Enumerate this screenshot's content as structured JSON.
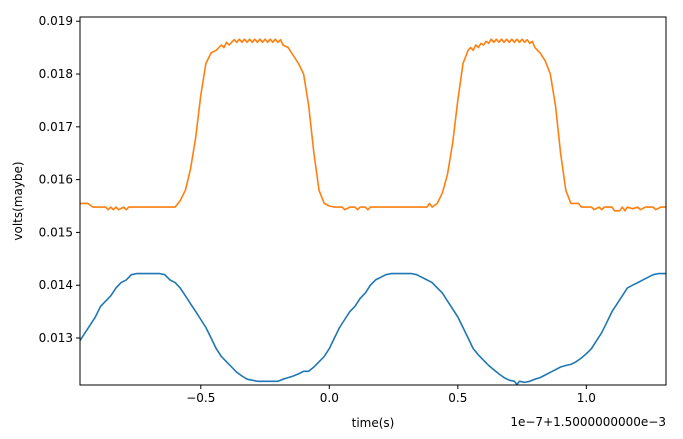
{
  "chart_data": {
    "type": "line",
    "xlabel": "time(s)",
    "ylabel": "volts(maybe)",
    "offset_label": "1e−7+1.5000000000e−3",
    "xlim": [
      -0.97,
      1.31
    ],
    "ylim": [
      0.01211,
      0.01908
    ],
    "xticks": [
      -0.5,
      0.0,
      0.5,
      1.0
    ],
    "xtick_labels": [
      "−0.5",
      "0.0",
      "0.5",
      "1.0"
    ],
    "yticks": [
      0.013,
      0.014,
      0.015,
      0.016,
      0.017,
      0.018,
      0.019
    ],
    "ytick_labels": [
      "0.013",
      "0.014",
      "0.015",
      "0.016",
      "0.017",
      "0.018",
      "0.019"
    ],
    "grid": false,
    "series": [
      {
        "color": "#ff7f0e",
        "points": [
          [
            -0.97,
            0.01555
          ],
          [
            -0.94,
            0.01555
          ],
          [
            -0.92,
            0.01548
          ],
          [
            -0.87,
            0.01548
          ],
          [
            -0.86,
            0.01543
          ],
          [
            -0.85,
            0.01548
          ],
          [
            -0.84,
            0.01543
          ],
          [
            -0.83,
            0.01548
          ],
          [
            -0.82,
            0.01543
          ],
          [
            -0.8,
            0.01548
          ],
          [
            -0.79,
            0.01543
          ],
          [
            -0.78,
            0.01548
          ],
          [
            -0.6,
            0.01548
          ],
          [
            -0.58,
            0.0156
          ],
          [
            -0.56,
            0.0158
          ],
          [
            -0.54,
            0.0162
          ],
          [
            -0.52,
            0.0168
          ],
          [
            -0.5,
            0.0176
          ],
          [
            -0.48,
            0.0182
          ],
          [
            -0.46,
            0.0184
          ],
          [
            -0.44,
            0.01845
          ],
          [
            -0.42,
            0.01855
          ],
          [
            -0.41,
            0.0185
          ],
          [
            -0.4,
            0.0186
          ],
          [
            -0.39,
            0.01855
          ],
          [
            -0.37,
            0.01865
          ],
          [
            -0.36,
            0.0186
          ],
          [
            -0.35,
            0.01866
          ],
          [
            -0.34,
            0.0186
          ],
          [
            -0.33,
            0.01866
          ],
          [
            -0.32,
            0.0186
          ],
          [
            -0.31,
            0.01866
          ],
          [
            -0.3,
            0.0186
          ],
          [
            -0.29,
            0.01866
          ],
          [
            -0.28,
            0.0186
          ],
          [
            -0.27,
            0.01866
          ],
          [
            -0.26,
            0.0186
          ],
          [
            -0.25,
            0.01866
          ],
          [
            -0.24,
            0.0186
          ],
          [
            -0.23,
            0.01866
          ],
          [
            -0.22,
            0.0186
          ],
          [
            -0.21,
            0.01866
          ],
          [
            -0.2,
            0.0186
          ],
          [
            -0.19,
            0.01865
          ],
          [
            -0.18,
            0.01855
          ],
          [
            -0.16,
            0.0185
          ],
          [
            -0.14,
            0.01835
          ],
          [
            -0.12,
            0.0182
          ],
          [
            -0.1,
            0.018
          ],
          [
            -0.08,
            0.0174
          ],
          [
            -0.06,
            0.0165
          ],
          [
            -0.04,
            0.0158
          ],
          [
            -0.02,
            0.01555
          ],
          [
            0.0,
            0.0155
          ],
          [
            0.02,
            0.01548
          ],
          [
            0.05,
            0.01548
          ],
          [
            0.06,
            0.01543
          ],
          [
            0.08,
            0.01548
          ],
          [
            0.1,
            0.01548
          ],
          [
            0.11,
            0.01543
          ],
          [
            0.12,
            0.01548
          ],
          [
            0.14,
            0.01548
          ],
          [
            0.15,
            0.01543
          ],
          [
            0.16,
            0.01548
          ],
          [
            0.38,
            0.01548
          ],
          [
            0.39,
            0.01555
          ],
          [
            0.4,
            0.01548
          ],
          [
            0.42,
            0.01555
          ],
          [
            0.44,
            0.01575
          ],
          [
            0.46,
            0.0161
          ],
          [
            0.48,
            0.0167
          ],
          [
            0.5,
            0.0175
          ],
          [
            0.52,
            0.0182
          ],
          [
            0.54,
            0.01845
          ],
          [
            0.55,
            0.0185
          ],
          [
            0.56,
            0.01845
          ],
          [
            0.57,
            0.01855
          ],
          [
            0.58,
            0.0185
          ],
          [
            0.59,
            0.01858
          ],
          [
            0.6,
            0.01855
          ],
          [
            0.61,
            0.01862
          ],
          [
            0.62,
            0.01858
          ],
          [
            0.63,
            0.01866
          ],
          [
            0.64,
            0.0186
          ],
          [
            0.65,
            0.01866
          ],
          [
            0.66,
            0.0186
          ],
          [
            0.67,
            0.01866
          ],
          [
            0.68,
            0.0186
          ],
          [
            0.69,
            0.01866
          ],
          [
            0.7,
            0.0186
          ],
          [
            0.71,
            0.01866
          ],
          [
            0.72,
            0.0186
          ],
          [
            0.73,
            0.01866
          ],
          [
            0.74,
            0.0186
          ],
          [
            0.75,
            0.01866
          ],
          [
            0.76,
            0.0186
          ],
          [
            0.77,
            0.01865
          ],
          [
            0.78,
            0.01858
          ],
          [
            0.79,
            0.01862
          ],
          [
            0.8,
            0.0185
          ],
          [
            0.82,
            0.0184
          ],
          [
            0.84,
            0.01825
          ],
          [
            0.86,
            0.018
          ],
          [
            0.88,
            0.0174
          ],
          [
            0.9,
            0.0165
          ],
          [
            0.92,
            0.0158
          ],
          [
            0.94,
            0.01555
          ],
          [
            0.97,
            0.01555
          ],
          [
            0.98,
            0.01548
          ],
          [
            1.02,
            0.01548
          ],
          [
            1.03,
            0.01543
          ],
          [
            1.05,
            0.01548
          ],
          [
            1.06,
            0.01543
          ],
          [
            1.07,
            0.01548
          ],
          [
            1.1,
            0.01548
          ],
          [
            1.11,
            0.01541
          ],
          [
            1.13,
            0.01541
          ],
          [
            1.14,
            0.01548
          ],
          [
            1.15,
            0.01541
          ],
          [
            1.16,
            0.01548
          ],
          [
            1.18,
            0.01545
          ],
          [
            1.2,
            0.01548
          ],
          [
            1.21,
            0.01543
          ],
          [
            1.23,
            0.01548
          ],
          [
            1.26,
            0.01548
          ],
          [
            1.27,
            0.01543
          ],
          [
            1.29,
            0.01548
          ],
          [
            1.31,
            0.01548
          ]
        ]
      },
      {
        "color": "#1f77b4",
        "points": [
          [
            -0.97,
            0.01295
          ],
          [
            -0.95,
            0.0131
          ],
          [
            -0.93,
            0.01325
          ],
          [
            -0.91,
            0.0134
          ],
          [
            -0.89,
            0.0136
          ],
          [
            -0.87,
            0.0137
          ],
          [
            -0.85,
            0.0138
          ],
          [
            -0.83,
            0.01395
          ],
          [
            -0.81,
            0.01405
          ],
          [
            -0.79,
            0.0141
          ],
          [
            -0.77,
            0.0142
          ],
          [
            -0.75,
            0.01422
          ],
          [
            -0.71,
            0.01422
          ],
          [
            -0.66,
            0.01422
          ],
          [
            -0.64,
            0.0142
          ],
          [
            -0.62,
            0.0141
          ],
          [
            -0.6,
            0.01405
          ],
          [
            -0.58,
            0.01395
          ],
          [
            -0.56,
            0.0138
          ],
          [
            -0.54,
            0.01365
          ],
          [
            -0.52,
            0.0135
          ],
          [
            -0.5,
            0.01335
          ],
          [
            -0.48,
            0.0132
          ],
          [
            -0.46,
            0.013
          ],
          [
            -0.44,
            0.0128
          ],
          [
            -0.42,
            0.01265
          ],
          [
            -0.4,
            0.01255
          ],
          [
            -0.38,
            0.01245
          ],
          [
            -0.36,
            0.01235
          ],
          [
            -0.34,
            0.01228
          ],
          [
            -0.32,
            0.01222
          ],
          [
            -0.3,
            0.0122
          ],
          [
            -0.28,
            0.01218
          ],
          [
            -0.2,
            0.01218
          ],
          [
            -0.18,
            0.01222
          ],
          [
            -0.16,
            0.01225
          ],
          [
            -0.14,
            0.01228
          ],
          [
            -0.12,
            0.01232
          ],
          [
            -0.1,
            0.01237
          ],
          [
            -0.08,
            0.01237
          ],
          [
            -0.06,
            0.01245
          ],
          [
            -0.04,
            0.01255
          ],
          [
            -0.02,
            0.01265
          ],
          [
            0.0,
            0.0128
          ],
          [
            0.02,
            0.013
          ],
          [
            0.04,
            0.0132
          ],
          [
            0.06,
            0.01335
          ],
          [
            0.08,
            0.0135
          ],
          [
            0.1,
            0.0136
          ],
          [
            0.12,
            0.01375
          ],
          [
            0.14,
            0.01385
          ],
          [
            0.16,
            0.014
          ],
          [
            0.18,
            0.0141
          ],
          [
            0.2,
            0.01415
          ],
          [
            0.22,
            0.0142
          ],
          [
            0.24,
            0.01422
          ],
          [
            0.32,
            0.01422
          ],
          [
            0.34,
            0.0142
          ],
          [
            0.36,
            0.01415
          ],
          [
            0.38,
            0.0141
          ],
          [
            0.4,
            0.01405
          ],
          [
            0.42,
            0.01395
          ],
          [
            0.44,
            0.01385
          ],
          [
            0.46,
            0.0137
          ],
          [
            0.48,
            0.01355
          ],
          [
            0.5,
            0.0134
          ],
          [
            0.52,
            0.0132
          ],
          [
            0.54,
            0.013
          ],
          [
            0.56,
            0.0128
          ],
          [
            0.58,
            0.01268
          ],
          [
            0.6,
            0.01258
          ],
          [
            0.62,
            0.01248
          ],
          [
            0.64,
            0.0124
          ],
          [
            0.66,
            0.01232
          ],
          [
            0.68,
            0.01225
          ],
          [
            0.7,
            0.0122
          ],
          [
            0.72,
            0.01218
          ],
          [
            0.73,
            0.01212
          ],
          [
            0.74,
            0.01218
          ],
          [
            0.76,
            0.01216
          ],
          [
            0.78,
            0.01218
          ],
          [
            0.8,
            0.01222
          ],
          [
            0.82,
            0.01225
          ],
          [
            0.84,
            0.0123
          ],
          [
            0.86,
            0.01235
          ],
          [
            0.88,
            0.0124
          ],
          [
            0.9,
            0.01245
          ],
          [
            0.92,
            0.01248
          ],
          [
            0.94,
            0.0125
          ],
          [
            0.96,
            0.01255
          ],
          [
            0.98,
            0.01262
          ],
          [
            1.0,
            0.0127
          ],
          [
            1.02,
            0.0128
          ],
          [
            1.04,
            0.01295
          ],
          [
            1.06,
            0.0131
          ],
          [
            1.08,
            0.0133
          ],
          [
            1.1,
            0.0135
          ],
          [
            1.12,
            0.01365
          ],
          [
            1.14,
            0.0138
          ],
          [
            1.16,
            0.01395
          ],
          [
            1.18,
            0.014
          ],
          [
            1.2,
            0.01405
          ],
          [
            1.22,
            0.0141
          ],
          [
            1.24,
            0.01415
          ],
          [
            1.26,
            0.0142
          ],
          [
            1.28,
            0.01422
          ],
          [
            1.31,
            0.01422
          ]
        ]
      }
    ]
  }
}
